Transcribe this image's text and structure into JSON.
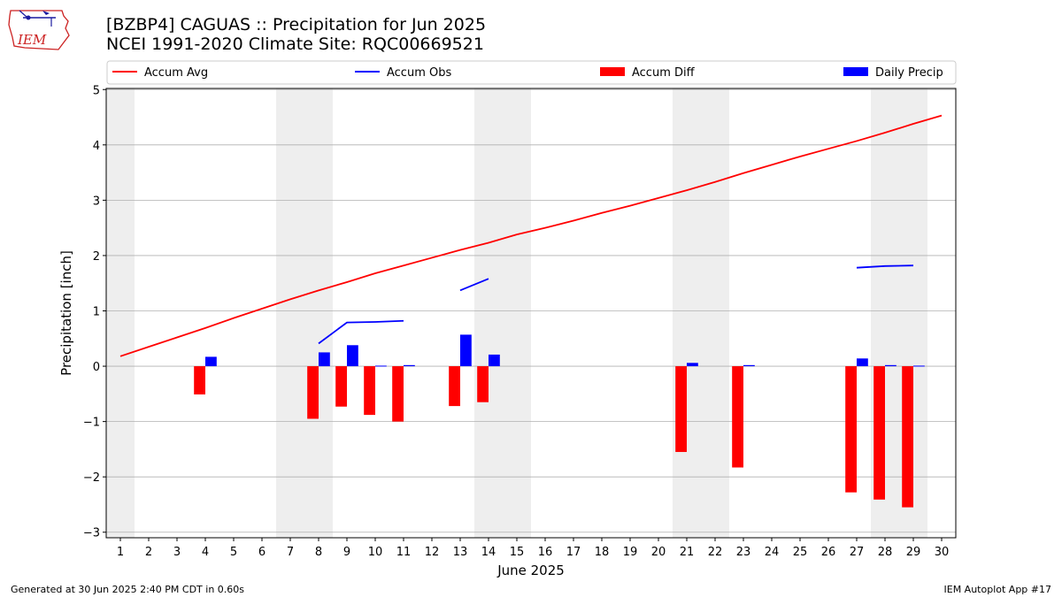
{
  "title_line1": "[BZBP4] CAGUAS :: Precipitation for Jun 2025",
  "title_line2": "NCEI 1991-2020 Climate Site: RQC00669521",
  "logo_text": "IEM",
  "footer_left": "Generated at 30 Jun 2025 2:40 PM CDT in 0.60s",
  "footer_right": "IEM Autoplot App #17",
  "colors": {
    "accum_avg": "#ff0000",
    "accum_obs": "#0000ff",
    "accum_diff": "#ff0000",
    "daily_precip": "#0000ff",
    "weekend_shade": "#eeeeee",
    "grid": "#b0b0b0"
  },
  "chart_data": {
    "type": "bar",
    "xlabel": "June 2025",
    "ylabel": "Precipitation [inch]",
    "ylim": [
      -3.1,
      5.02
    ],
    "xlim": [
      0.5,
      30.5
    ],
    "grid": "horizontal",
    "legend_placement": "top",
    "x_ticks": [
      1,
      2,
      3,
      4,
      5,
      6,
      7,
      8,
      9,
      10,
      11,
      12,
      13,
      14,
      15,
      16,
      17,
      18,
      19,
      20,
      21,
      22,
      23,
      24,
      25,
      26,
      27,
      28,
      29,
      30
    ],
    "y_ticks": [
      -3,
      -2,
      -1,
      0,
      1,
      2,
      3,
      4,
      5
    ],
    "y_tick_labels": [
      "−3",
      "−2",
      "−1",
      "0",
      "1",
      "2",
      "3",
      "4",
      "5"
    ],
    "weekend_days": [
      1,
      7,
      8,
      14,
      15,
      21,
      22,
      28,
      29
    ],
    "series": [
      {
        "name": "Accum Avg",
        "kind": "line",
        "x": [
          1,
          2,
          3,
          4,
          5,
          6,
          7,
          8,
          9,
          10,
          11,
          12,
          13,
          14,
          15,
          16,
          17,
          18,
          19,
          20,
          21,
          22,
          23,
          24,
          25,
          26,
          27,
          28,
          29,
          30
        ],
        "values": [
          0.18,
          0.35,
          0.52,
          0.69,
          0.87,
          1.04,
          1.21,
          1.37,
          1.52,
          1.68,
          1.82,
          1.96,
          2.1,
          2.23,
          2.38,
          2.5,
          2.63,
          2.77,
          2.9,
          3.04,
          3.18,
          3.33,
          3.49,
          3.64,
          3.79,
          3.93,
          4.07,
          4.22,
          4.38,
          4.53
        ]
      },
      {
        "name": "Accum Obs",
        "kind": "line",
        "segments": [
          {
            "x": [
              8,
              9,
              10,
              11
            ],
            "values": [
              0.41,
              0.79,
              0.8,
              0.82
            ]
          },
          {
            "x": [
              13,
              14
            ],
            "values": [
              1.37,
              1.58
            ]
          },
          {
            "x": [
              27,
              28,
              29
            ],
            "values": [
              1.78,
              1.81,
              1.82
            ]
          }
        ]
      },
      {
        "name": "Accum Diff",
        "kind": "bar",
        "x": [
          4,
          8,
          9,
          10,
          11,
          13,
          14,
          21,
          23,
          27,
          28,
          29
        ],
        "values": [
          -0.51,
          -0.95,
          -0.73,
          -0.88,
          -1.0,
          -0.72,
          -0.65,
          -1.55,
          -1.83,
          -2.28,
          -2.41,
          -2.55
        ]
      },
      {
        "name": "Daily Precip",
        "kind": "bar",
        "x": [
          4,
          8,
          9,
          10,
          11,
          13,
          14,
          21,
          23,
          27,
          28,
          29
        ],
        "values": [
          0.17,
          0.25,
          0.38,
          0.01,
          0.02,
          0.57,
          0.21,
          0.06,
          0.02,
          0.14,
          0.02,
          0.01
        ]
      }
    ]
  }
}
